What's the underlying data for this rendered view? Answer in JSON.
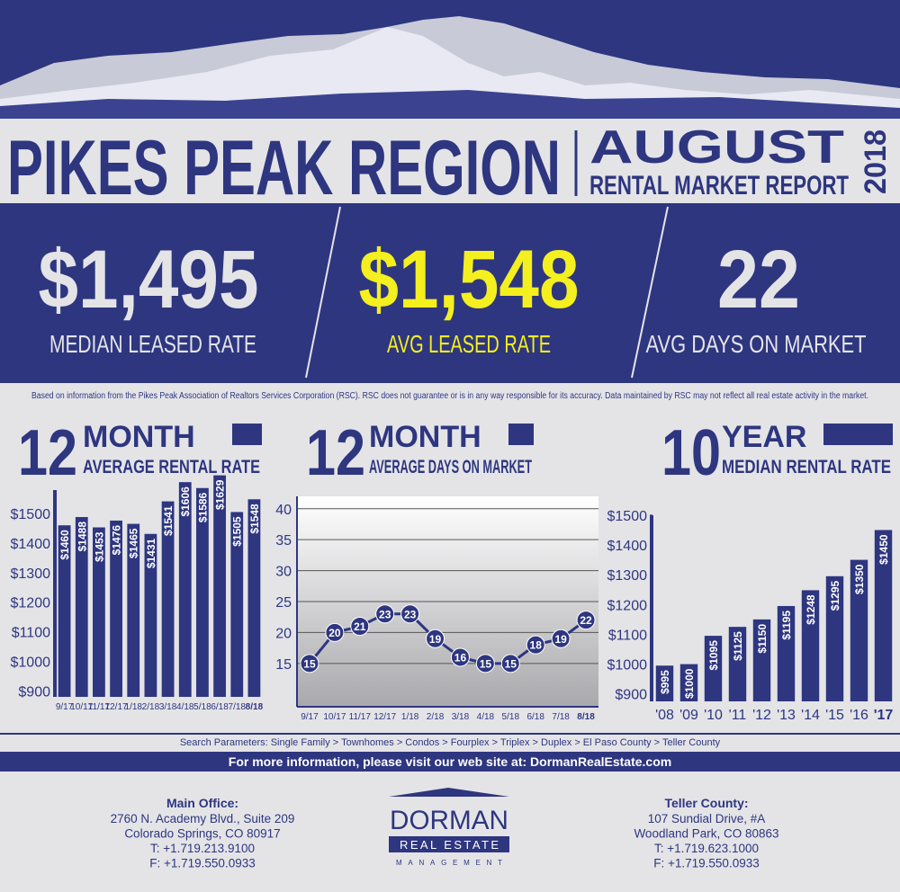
{
  "header": {
    "title": "PIKES PEAK REGION",
    "month": "AUGUST",
    "subtitle": "RENTAL MARKET REPORT",
    "year": "2018"
  },
  "stats": [
    {
      "value": "$1,495",
      "label": "MEDIAN LEASED RATE"
    },
    {
      "value": "$1,548",
      "label": "AVG LEASED RATE"
    },
    {
      "value": "22",
      "label": "AVG DAYS ON MARKET"
    }
  ],
  "disclaimer": "Based on information from the Pikes Peak Association of Realtors Services Corporation (RSC). RSC does not guarantee or is in any way responsible for its accuracy. Data maintained by RSC may not reflect all real estate activity in the market.",
  "chart_data": [
    {
      "type": "bar",
      "title_number": "12",
      "title_unit": "MONTH",
      "title": "AVERAGE RENTAL RATE",
      "categories": [
        "9/17",
        "10/17",
        "11/17",
        "12/17",
        "1/18",
        "2/18",
        "3/18",
        "4/18",
        "5/18",
        "6/18",
        "7/18",
        "8/18"
      ],
      "values": [
        1460,
        1488,
        1453,
        1476,
        1465,
        1431,
        1541,
        1606,
        1586,
        1629,
        1505,
        1548
      ],
      "value_labels": [
        "$1460",
        "$1488",
        "$1453",
        "$1476",
        "$1465",
        "$1431",
        "$1541",
        "$1606",
        "$1586",
        "$1629",
        "$1505",
        "$1548"
      ],
      "color": "#2e3680",
      "ylim": [
        880,
        1640
      ],
      "yticks": [
        {
          "value": 900,
          "label": "$900"
        },
        {
          "value": 1000,
          "label": "$1000"
        },
        {
          "value": 1100,
          "label": "$1100"
        },
        {
          "value": 1200,
          "label": "$1200"
        },
        {
          "value": 1300,
          "label": "$1300"
        },
        {
          "value": 1400,
          "label": "$1400"
        },
        {
          "value": 1500,
          "label": "$1500"
        }
      ]
    },
    {
      "type": "line",
      "title_number": "12",
      "title_unit": "MONTH",
      "title": "AVERAGE DAYS ON MARKET",
      "categories": [
        "9/17",
        "10/17",
        "11/17",
        "12/17",
        "1/18",
        "2/18",
        "3/18",
        "4/18",
        "5/18",
        "6/18",
        "7/18",
        "8/18"
      ],
      "values": [
        15,
        20,
        21,
        23,
        23,
        19,
        16,
        15,
        15,
        18,
        19,
        22
      ],
      "color": "#2e3680",
      "ylim": [
        8,
        42
      ],
      "yticks": [
        15,
        20,
        25,
        30,
        35,
        40
      ],
      "grid": true
    },
    {
      "type": "bar",
      "title_number": "10",
      "title_unit": "YEAR",
      "title": "MEDIAN RENTAL RATE",
      "categories": [
        "'08",
        "'09",
        "'10",
        "'11",
        "'12",
        "'13",
        "'14",
        "'15",
        "'16",
        "'17"
      ],
      "values": [
        995,
        1000,
        1095,
        1125,
        1150,
        1195,
        1248,
        1295,
        1350,
        1450
      ],
      "value_labels": [
        "$995",
        "$1000",
        "$1095",
        "$1125",
        "$1150",
        "$1195",
        "$1248",
        "$1295",
        "$1350",
        "$1450"
      ],
      "color": "#2e3680",
      "ylim": [
        875,
        1560
      ],
      "yticks": [
        {
          "value": 900,
          "label": "$900"
        },
        {
          "value": 1000,
          "label": "$1000"
        },
        {
          "value": 1100,
          "label": "$1100"
        },
        {
          "value": 1200,
          "label": "$1200"
        },
        {
          "value": 1300,
          "label": "$1300"
        },
        {
          "value": 1400,
          "label": "$1400"
        },
        {
          "value": 1500,
          "label": "$1500"
        }
      ]
    }
  ],
  "footer": {
    "search": "Search Parameters: Single Family > Townhomes > Condos > Fourplex > Triplex > Duplex > El Paso County > Teller County",
    "web": "For more information, please visit our web site at: DormanRealEstate.com",
    "offices": [
      {
        "title": "Main Office:",
        "lines": [
          "2760 N. Academy Blvd.,  Suite 209",
          "Colorado Springs, CO 80917",
          "T: +1.719.213.9100",
          "F: +1.719.550.0933"
        ]
      },
      {
        "title": "Teller County:",
        "lines": [
          "107 Sundial Drive, #A",
          "Woodland Park, CO 80863",
          "T: +1.719.623.1000",
          "F: +1.719.550.0933"
        ]
      }
    ],
    "logo": {
      "name": "DORMAN",
      "line1": "REAL ESTATE",
      "line2": "MANAGEMENT"
    }
  }
}
